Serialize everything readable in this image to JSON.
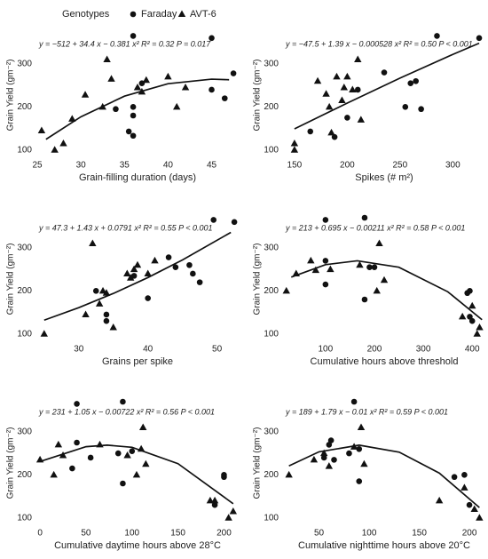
{
  "legend": {
    "title": "Genotypes",
    "entries": [
      {
        "name": "Faraday",
        "marker": "circle"
      },
      {
        "name": "AVT-6",
        "marker": "triangle"
      }
    ]
  },
  "chart_data": [
    {
      "type": "scatter",
      "equation": "y = −512 + 34.4 x − 0.381 x²   R² = 0.32   P = 0.017",
      "x_label": "Grain-filling duration (days)",
      "y_label": "Grain Yield (gm⁻²)",
      "xlim": [
        25,
        48
      ],
      "xticks": [
        25,
        30,
        35,
        40,
        45
      ],
      "ylim": [
        85,
        370
      ],
      "yticks": [
        100,
        200,
        300
      ],
      "series": [
        {
          "marker": "circle",
          "x": [
            34,
            35.5,
            36,
            36,
            36,
            36,
            37,
            45,
            45,
            46.5,
            47.5
          ],
          "values": [
            195,
            143,
            180,
            200,
            133,
            365,
            255,
            360,
            240,
            220,
            278
          ]
        },
        {
          "marker": "triangle",
          "x": [
            25.5,
            27,
            28,
            29,
            30.5,
            32.5,
            33,
            33.5,
            36.5,
            37,
            37.5,
            40,
            41,
            42
          ],
          "values": [
            145,
            100,
            115,
            172,
            228,
            200,
            310,
            265,
            245,
            235,
            262,
            270,
            200,
            245
          ]
        }
      ],
      "fit": {
        "x": [
          26,
          30,
          35,
          40,
          45,
          47
        ],
        "y": [
          124.8,
          177,
          225,
          254,
          264.5,
          263.2
        ]
      }
    },
    {
      "type": "scatter",
      "equation": "y = −47.5 + 1.39 x − 0.000528 x²   R² = 0.50   P < 0.001",
      "x_label": "Spikes (# m²)",
      "y_label": "Grain Yield (gm⁻²)",
      "xlim": [
        140,
        330
      ],
      "xticks": [
        150,
        200,
        250,
        300
      ],
      "ylim": [
        85,
        370
      ],
      "yticks": [
        100,
        200,
        300
      ],
      "series": [
        {
          "marker": "circle",
          "x": [
            165,
            188,
            200,
            210,
            235,
            255,
            260,
            265,
            270,
            285,
            325
          ],
          "values": [
            143,
            130,
            175,
            240,
            280,
            200,
            255,
            260,
            195,
            365,
            360
          ]
        },
        {
          "marker": "triangle",
          "x": [
            150,
            150,
            172,
            180,
            183,
            185,
            190,
            195,
            197,
            200,
            205,
            210,
            213
          ],
          "values": [
            115,
            100,
            260,
            230,
            200,
            140,
            270,
            215,
            245,
            270,
            240,
            310,
            170
          ]
        }
      ],
      "fit": {
        "x": [
          150,
          200,
          250,
          300,
          325
        ],
        "y": [
          149,
          209,
          267,
          322,
          348
        ]
      }
    },
    {
      "type": "scatter",
      "equation": "y = 47.3 + 1.43 x + 0.0791 x²   R² = 0.55   P < 0.001",
      "x_label": "Grains per spike",
      "y_label": "Grain Yield (gm⁻²)",
      "xlim": [
        24,
        53
      ],
      "xticks": [
        30,
        40,
        50
      ],
      "ylim": [
        85,
        370
      ],
      "yticks": [
        100,
        200,
        300
      ],
      "series": [
        {
          "marker": "circle",
          "x": [
            32.5,
            34,
            34,
            38,
            40,
            43,
            44,
            46,
            46.5,
            47.5,
            49.5,
            52.5
          ],
          "values": [
            200,
            145,
            130,
            235,
            183,
            278,
            255,
            260,
            240,
            220,
            365,
            360
          ]
        },
        {
          "marker": "triangle",
          "x": [
            25,
            31,
            32,
            33,
            33.5,
            34,
            35,
            37,
            37.5,
            38,
            38.5,
            40,
            41
          ],
          "values": [
            100,
            145,
            310,
            170,
            200,
            195,
            115,
            240,
            230,
            250,
            260,
            240,
            270
          ]
        }
      ],
      "fit": {
        "x": [
          25,
          30,
          35,
          40,
          45,
          52
        ],
        "y": [
          132,
          161,
          194,
          231,
          272,
          336
        ]
      }
    },
    {
      "type": "scatter",
      "equation": "y = 213 + 0.695 x − 0.00211 x²   R² = 0.58   P < 0.001",
      "x_label": "Cumulative hours above threshold",
      "y_label": "Grain Yield (gm⁻²)",
      "xlim": [
        15,
        425
      ],
      "xticks": [
        100,
        200,
        300,
        400
      ],
      "ylim": [
        85,
        370
      ],
      "yticks": [
        100,
        200,
        300
      ],
      "series": [
        {
          "marker": "circle",
          "x": [
            100,
            100,
            100,
            180,
            180,
            190,
            200,
            390,
            395,
            395,
            400
          ],
          "values": [
            215,
            270,
            365,
            180,
            370,
            255,
            255,
            195,
            200,
            140,
            130
          ]
        },
        {
          "marker": "triangle",
          "x": [
            20,
            40,
            70,
            80,
            110,
            170,
            210,
            205,
            220,
            380,
            400,
            410,
            415
          ],
          "values": [
            200,
            240,
            270,
            248,
            250,
            260,
            310,
            200,
            225,
            140,
            165,
            100,
            115
          ]
        }
      ],
      "fit": {
        "x": [
          30,
          100,
          165,
          250,
          350,
          420
        ],
        "y": [
          232,
          261,
          270,
          255,
          198,
          133
        ]
      }
    },
    {
      "type": "scatter",
      "equation": "y = 231 + 1.05 x − 0.00722 x²   R² = 0.56   P < 0.001",
      "x_label": "Cumulative daytime hours above 28°C",
      "y_label": "Grain Yield (gm⁻²)",
      "xlim": [
        -3,
        215
      ],
      "xticks": [
        0,
        50,
        100,
        150,
        200
      ],
      "ylim": [
        85,
        370
      ],
      "yticks": [
        100,
        200,
        300
      ],
      "series": [
        {
          "marker": "circle",
          "x": [
            35,
            40,
            55,
            85,
            90,
            90,
            40,
            100,
            190,
            200,
            200
          ],
          "values": [
            215,
            275,
            240,
            250,
            180,
            370,
            365,
            255,
            130,
            195,
            200
          ]
        },
        {
          "marker": "triangle",
          "x": [
            0,
            15,
            20,
            25,
            65,
            95,
            105,
            110,
            112,
            115,
            185,
            190,
            205,
            210
          ],
          "values": [
            235,
            200,
            270,
            245,
            270,
            245,
            200,
            260,
            310,
            225,
            140,
            140,
            100,
            115
          ]
        }
      ],
      "fit": {
        "x": [
          0,
          50,
          73,
          100,
          150,
          210
        ],
        "y": [
          231,
          265.5,
          269,
          264,
          226,
          133
        ]
      }
    },
    {
      "type": "scatter",
      "equation": "y = 189 + 1.79 x − 0.01 x²   R² = 0.59   P < 0.001",
      "x_label": "Cumulative nighttime hours above 20°C",
      "y_label": "Grain Yield (gm⁻²)",
      "xlim": [
        15,
        215
      ],
      "xticks": [
        50,
        100,
        150,
        200
      ],
      "ylim": [
        85,
        370
      ],
      "yticks": [
        100,
        200,
        300
      ],
      "series": [
        {
          "marker": "circle",
          "x": [
            55,
            60,
            62,
            65,
            80,
            90,
            90,
            85,
            185,
            195,
            200
          ],
          "values": [
            240,
            270,
            280,
            235,
            250,
            185,
            260,
            370,
            195,
            200,
            130
          ]
        },
        {
          "marker": "triangle",
          "x": [
            20,
            45,
            55,
            60,
            85,
            92,
            95,
            170,
            195,
            205,
            210
          ],
          "values": [
            200,
            235,
            250,
            220,
            265,
            310,
            225,
            140,
            170,
            120,
            100
          ]
        }
      ],
      "fit": {
        "x": [
          20,
          50,
          90,
          130,
          170,
          210
        ],
        "y": [
          220.8,
          253.5,
          269,
          252.7,
          204,
          123.9
        ]
      }
    }
  ]
}
